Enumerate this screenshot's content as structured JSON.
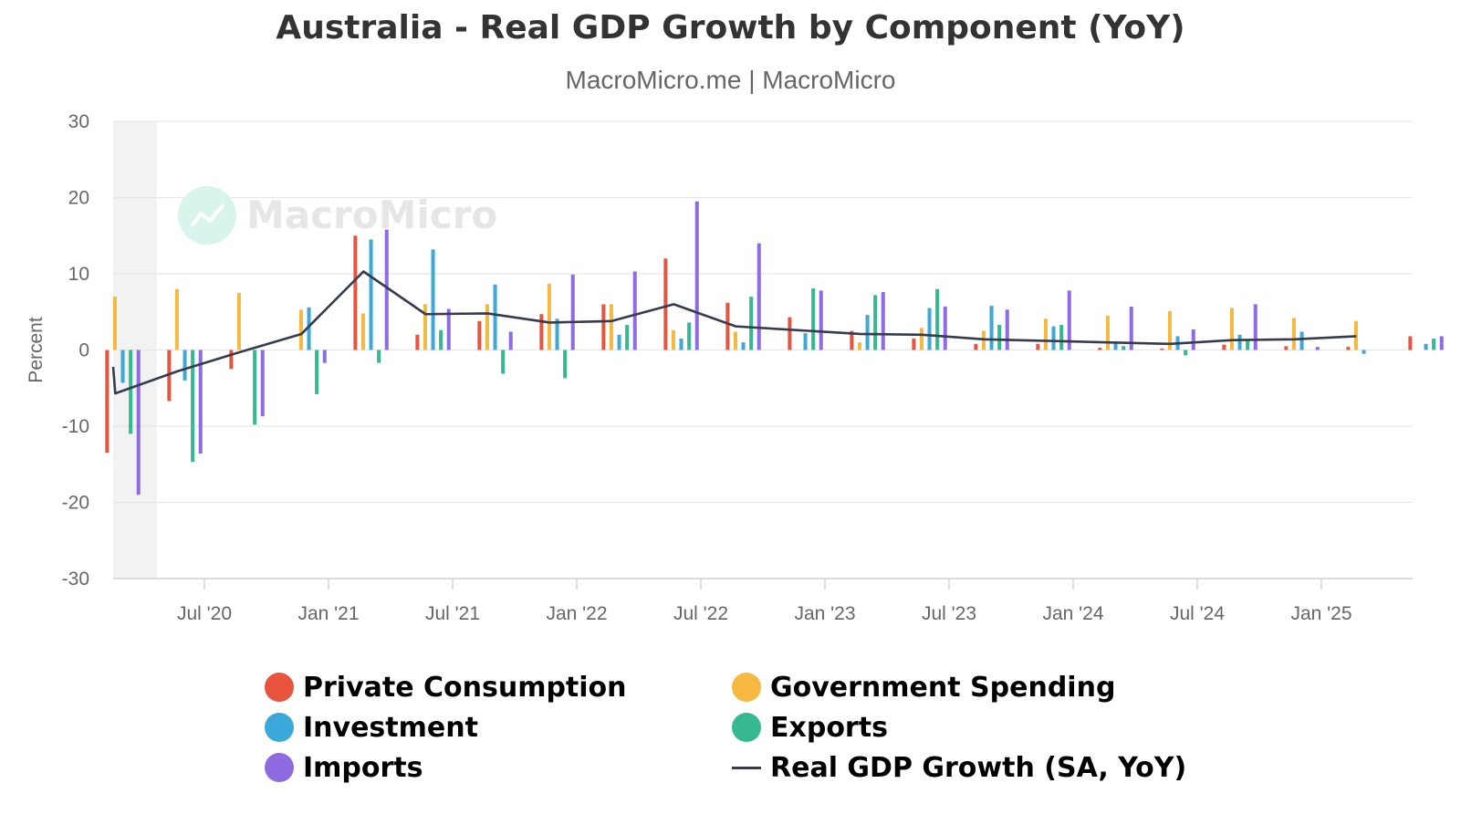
{
  "chart_data": {
    "type": "bar",
    "title": "Australia - Real GDP Growth by Component (YoY)",
    "subtitle": "MacroMicro.me | MacroMicro",
    "watermark": "MacroMicro",
    "ylabel": "Percent",
    "xlabel": "",
    "ylim": [
      -30,
      30
    ],
    "yticks": [
      30,
      20,
      10,
      0,
      -10,
      -20,
      -30
    ],
    "grid": true,
    "legend_position": "bottom",
    "shaded_region": {
      "from": "2020-03",
      "to": "2020-05"
    },
    "x_tick_labels": [
      "Jul '20",
      "Jan '21",
      "Jul '21",
      "Jan '22",
      "Jul '22",
      "Jan '23",
      "Jul '23",
      "Jan '24",
      "Jul '24",
      "Jan '25"
    ],
    "x_tick_dates": [
      "2020-07",
      "2021-01",
      "2021-07",
      "2022-01",
      "2022-07",
      "2023-01",
      "2023-07",
      "2024-01",
      "2024-07",
      "2025-01"
    ],
    "x": [
      "2020-03",
      "2020-06",
      "2020-09",
      "2020-12",
      "2021-03",
      "2021-06",
      "2021-09",
      "2021-12",
      "2022-03",
      "2022-06",
      "2022-09",
      "2022-12",
      "2023-03",
      "2023-06",
      "2023-09",
      "2023-12",
      "2024-03",
      "2024-06",
      "2024-09",
      "2024-12",
      "2025-03",
      "2025-06"
    ],
    "series": [
      {
        "name": "Private Consumption",
        "type": "bar",
        "color": "#e8543e",
        "values": [
          -13.5,
          -6.7,
          -2.5,
          0,
          15.0,
          2.0,
          3.8,
          4.7,
          6.0,
          12.0,
          6.2,
          4.3,
          2.5,
          1.5,
          0.8,
          0.8,
          0.3,
          0.2,
          0.7,
          0.5,
          0.4,
          1.8
        ]
      },
      {
        "name": "Government Spending",
        "type": "bar",
        "color": "#f5b841",
        "values": [
          7.0,
          8.0,
          7.5,
          5.3,
          4.8,
          6.0,
          6.0,
          8.7,
          6.0,
          2.6,
          2.4,
          0,
          1.0,
          2.9,
          2.5,
          4.1,
          4.5,
          5.1,
          5.5,
          4.2,
          3.8,
          0
        ]
      },
      {
        "name": "Investment",
        "type": "bar",
        "color": "#3aa8d8",
        "values": [
          -4.3,
          -4.0,
          0,
          5.6,
          14.5,
          13.2,
          8.6,
          4.1,
          2.0,
          1.5,
          1.0,
          2.2,
          4.6,
          5.5,
          5.8,
          3.1,
          1.0,
          1.8,
          2.0,
          2.4,
          -0.5,
          0.8
        ]
      },
      {
        "name": "Exports",
        "type": "bar",
        "color": "#36b890",
        "values": [
          -11.0,
          -14.7,
          -9.8,
          -5.8,
          -1.7,
          2.6,
          -3.1,
          -3.7,
          3.3,
          3.6,
          7.0,
          8.1,
          7.2,
          8.0,
          3.3,
          3.3,
          0.5,
          -0.7,
          1.3,
          0,
          0,
          1.5
        ]
      },
      {
        "name": "Imports",
        "type": "bar",
        "color": "#8e6be0",
        "values": [
          -19.0,
          -13.6,
          -8.7,
          -1.7,
          15.8,
          5.4,
          2.4,
          9.9,
          10.3,
          19.5,
          14.0,
          7.8,
          7.6,
          5.7,
          5.3,
          7.8,
          5.7,
          2.7,
          6.0,
          0.4,
          0,
          1.8
        ]
      },
      {
        "name": "Real GDP Growth (SA, YoY)",
        "type": "line",
        "color": "#363b4e",
        "x": [
          "2019-12",
          "2020-03",
          "2020-06",
          "2020-09",
          "2020-12",
          "2021-03",
          "2021-06",
          "2021-09",
          "2021-12",
          "2022-03",
          "2022-06",
          "2022-09",
          "2022-12",
          "2023-03",
          "2023-06",
          "2023-09",
          "2023-12",
          "2024-03",
          "2024-06",
          "2024-09",
          "2024-12",
          "2025-03"
        ],
        "values": [
          -2.2,
          -5.7,
          -2.8,
          -0.3,
          2.1,
          10.3,
          4.7,
          4.8,
          3.6,
          3.8,
          6.0,
          3.1,
          2.6,
          2.1,
          2.0,
          1.4,
          1.2,
          1.0,
          0.8,
          1.3,
          1.4,
          1.8
        ]
      }
    ]
  }
}
